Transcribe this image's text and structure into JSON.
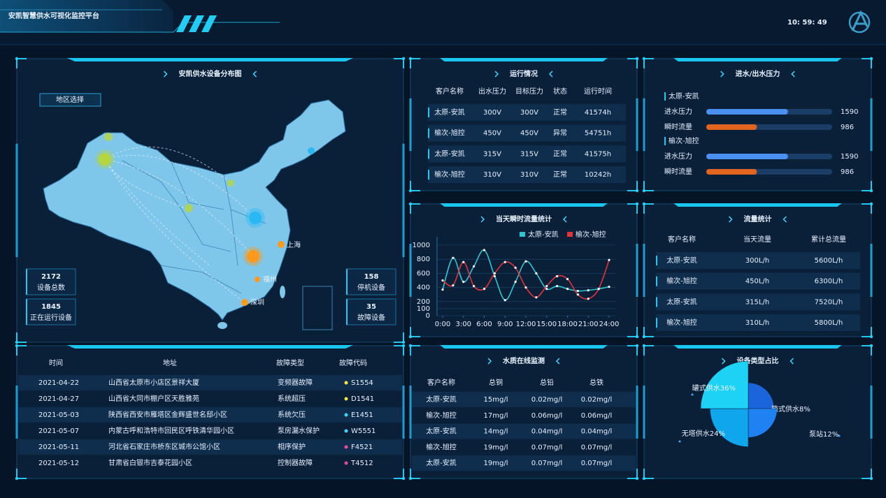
{
  "header": {
    "title": "安凯智慧供水可视化监控平台",
    "time": "10: 59: 49"
  },
  "map_panel": {
    "title": "安凯供水设备分布图",
    "region_button": "地区选择",
    "stats": [
      {
        "value": 2172,
        "label": "设备总数"
      },
      {
        "value": 1845,
        "label": "正在运行设备"
      },
      {
        "value": 158,
        "label": "停机设备"
      },
      {
        "value": 35,
        "label": "故障设备"
      }
    ],
    "cities": [
      "上海",
      "福州",
      "深圳"
    ]
  },
  "run_panel": {
    "title": "运行情况",
    "columns": [
      "客户名称",
      "出水压力",
      "目标压力",
      "状态",
      "运行时间"
    ],
    "rows": [
      [
        "太原-安凯",
        "300V",
        "300V",
        "正常",
        "41574h"
      ],
      [
        "榆次-旭控",
        "450V",
        "450V",
        "异常",
        "54751h"
      ],
      [
        "太原-安凯",
        "315V",
        "315V",
        "正常",
        "41575h"
      ],
      [
        "榆次-旭控",
        "310V",
        "310V",
        "正常",
        "10242h"
      ]
    ],
    "status_colors": [
      "#19e04a",
      "#ff2b2b",
      "#19e04a",
      "#19e04a"
    ]
  },
  "pressure_panel": {
    "title": "进水/出水压力",
    "xlim": [
      0,
      2450
    ],
    "groups": [
      {
        "name": "太原-安凯",
        "bars": [
          {
            "label": "进水压力",
            "value": 1590,
            "color": "#4a90f0"
          },
          {
            "label": "瞬时流量",
            "value": 986,
            "color": "#e0641e"
          }
        ]
      },
      {
        "name": "榆次-旭控",
        "bars": [
          {
            "label": "进水压力",
            "value": 1590,
            "color": "#4a90f0"
          },
          {
            "label": "瞬时流量",
            "value": 986,
            "color": "#e0641e"
          }
        ]
      }
    ]
  },
  "chart_data": [
    {
      "type": "line",
      "title": "当天瞬时流量统计",
      "x": [
        0,
        1.5,
        3,
        4.5,
        6,
        7.5,
        9,
        10.5,
        12,
        13.5,
        15,
        16.5,
        18,
        19.5,
        21,
        22.5,
        24
      ],
      "xlim": [
        0,
        24
      ],
      "xticks": [
        {
          "value": 0,
          "label": "0:00"
        },
        {
          "value": 3,
          "label": "3:00"
        },
        {
          "value": 6,
          "label": "6:00"
        },
        {
          "value": 9,
          "label": "9:00"
        },
        {
          "value": 12,
          "label": "12:00"
        },
        {
          "value": 15,
          "label": "15:00"
        },
        {
          "value": 18,
          "label": "18:00"
        },
        {
          "value": 21,
          "label": "21:00"
        },
        {
          "value": 24,
          "label": "24:00"
        }
      ],
      "ylim": [
        0,
        1000
      ],
      "yticks": [
        0,
        100,
        200,
        400,
        600,
        800,
        1000
      ],
      "grid": true,
      "series": [
        {
          "name": "太原-安凯",
          "color": "#2ec7d0",
          "values": [
            370,
            820,
            480,
            700,
            930,
            560,
            220,
            480,
            770,
            600,
            380,
            420,
            380,
            350,
            360,
            380,
            410
          ]
        },
        {
          "name": "榆次-旭控",
          "color": "#e0353a",
          "values": [
            500,
            430,
            760,
            420,
            380,
            600,
            760,
            680,
            400,
            260,
            420,
            560,
            520,
            300,
            240,
            380,
            790
          ]
        }
      ]
    },
    {
      "type": "pie",
      "title": "设备类型占比",
      "categories": [
        "箱式供水",
        "泵站",
        "无塔供水",
        "罐式供水"
      ],
      "values": [
        8,
        12,
        24,
        36
      ],
      "value_labels": [
        "8%",
        "12%",
        "24%",
        "36%"
      ],
      "colors": [
        "#1a64dc",
        "#1f82f2",
        "#0fa6ee",
        "#1ed2f6"
      ],
      "rose": true
    }
  ],
  "flow_panel": {
    "title": "流量统计",
    "columns": [
      "客户名称",
      "当天流量",
      "累计总流量"
    ],
    "rows": [
      [
        "太原-安凯",
        "300L/h",
        "5600L/h"
      ],
      [
        "榆次-旭控",
        "450L/h",
        "6300L/h"
      ],
      [
        "太原-安凯",
        "315L/h",
        "7520L/h"
      ],
      [
        "榆次-旭控",
        "310L/h",
        "5800L/h"
      ]
    ]
  },
  "fault_table": {
    "columns": [
      "时间",
      "地址",
      "故障类型",
      "故障代码"
    ],
    "rows": [
      [
        "2021-04-22",
        "山西省太原市小店区景祥大厦",
        "变频器故障",
        "S1554"
      ],
      [
        "2021-04-27",
        "山西省大同市棚户区天胜雅苑",
        "系统超压",
        "D1541"
      ],
      [
        "2021-05-03",
        "陕西省西安市雁塔区金辉盛世名邸小区",
        "系统欠压",
        "E1451"
      ],
      [
        "2021-05-07",
        "内蒙古呼和浩特市回民区呼铁清华园小区",
        "泵房漏水保护",
        "W5551"
      ],
      [
        "2021-05-11",
        "河北省石家庄市桥东区城市公馆小区",
        "相序保护",
        "F4521"
      ],
      [
        "2021-05-12",
        "甘肃省白银市吉泰花园小区",
        "控制器故障",
        "T4512"
      ]
    ],
    "code_colors": [
      "#f5e642",
      "#f5e642",
      "#3ad8ff",
      "#3ad8ff",
      "#f0509a",
      "#e0509a"
    ]
  },
  "water_panel": {
    "title": "水质在线监测",
    "columns": [
      "客户名称",
      "总铜",
      "总铅",
      "总铁"
    ],
    "rows": [
      [
        "太原-安凯",
        "15mg/l",
        "0.02mg/l",
        "0.02mg/l"
      ],
      [
        "榆次-旭控",
        "17mg/l",
        "0.06mg/l",
        "0.06mg/l"
      ],
      [
        "太原-安凯",
        "14mg/l",
        "0.04mg/l",
        "0.04mg/l"
      ],
      [
        "榆次-旭控",
        "19mg/l",
        "0.07mg/l",
        "0.07mg/l"
      ],
      [
        "太原-安凯",
        "19mg/l",
        "0.07mg/l",
        "0.07mg/l"
      ]
    ],
    "alert_color": "#e0252a",
    "alert_cell": [
      3,
      2
    ]
  }
}
